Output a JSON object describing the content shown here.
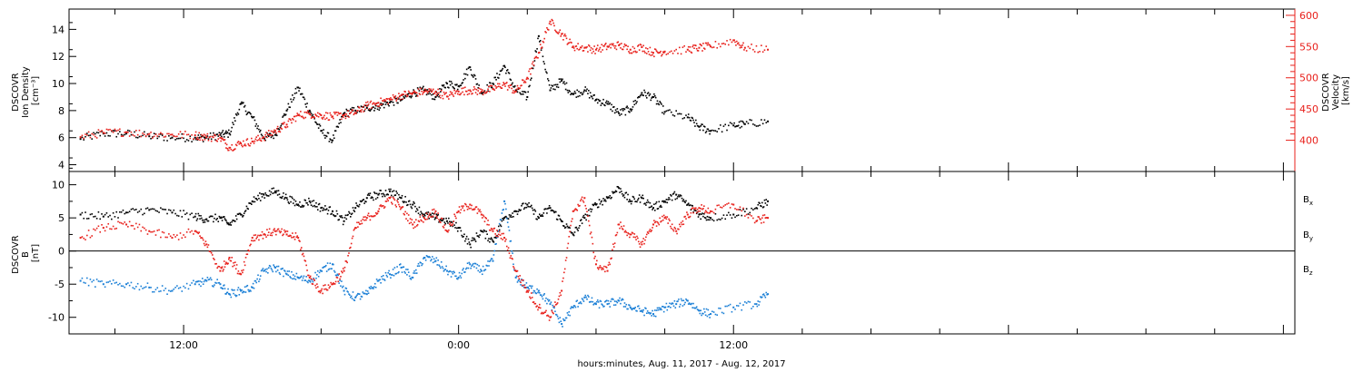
{
  "colors": {
    "black": "#000000",
    "red": "#e8201b",
    "blue": "#1a7fd6"
  },
  "chart_data": [
    {
      "type": "scatter",
      "panel": "top",
      "ylabel_left": [
        "DSCOVR",
        "Ion Density",
        "[cm⁻³]"
      ],
      "ylabel_right": [
        "DSCOVR",
        "Velocity",
        "[km/s]"
      ],
      "ylim_left": [
        3.5,
        15.5
      ],
      "left_ticks": [
        4,
        6,
        8,
        10,
        12,
        14
      ],
      "ylim_right": [
        350,
        610
      ],
      "right_ticks": [
        400,
        450,
        500,
        550,
        600
      ],
      "series": [
        {
          "name": "Ion Density",
          "color": "black",
          "axis": "left",
          "x": [
            7.5,
            8.5,
            9.5,
            10.5,
            11.5,
            12.5,
            13.0,
            13.6,
            14.0,
            14.5,
            15.0,
            15.5,
            16.0,
            16.5,
            17.0,
            17.5,
            18.0,
            18.5,
            19.0,
            19.5,
            20.0,
            20.5,
            21.0,
            21.5,
            22.0,
            22.5,
            23.0,
            23.5,
            24.0,
            24.5,
            25.0,
            25.5,
            26.0,
            26.5,
            27.0,
            27.5,
            28.0,
            28.5,
            29.0,
            29.5,
            30.0,
            30.5,
            31.0,
            31.5,
            32.0,
            32.5,
            33.0,
            34.0,
            34.5,
            35.0,
            36.0,
            36.5,
            37.5
          ],
          "y": [
            5.9,
            6.3,
            6.3,
            6.1,
            6.0,
            6.0,
            6.0,
            6.2,
            6.3,
            8.5,
            7.5,
            6.0,
            6.2,
            8.0,
            9.7,
            8.0,
            6.5,
            5.8,
            7.8,
            8.0,
            8.2,
            8.3,
            8.6,
            8.8,
            9.3,
            9.5,
            9.0,
            10.0,
            9.8,
            11.2,
            9.3,
            10.0,
            11.3,
            9.5,
            9.0,
            13.5,
            9.5,
            10.2,
            9.2,
            9.5,
            8.8,
            8.5,
            7.8,
            8.1,
            9.3,
            9.0,
            7.9,
            7.5,
            6.8,
            6.5,
            6.9,
            7.0,
            7.2
          ]
        },
        {
          "name": "Velocity",
          "color": "red",
          "axis": "right",
          "x": [
            7.5,
            8.5,
            9.5,
            10.5,
            11.5,
            12.5,
            13.0,
            13.6,
            14.0,
            14.5,
            15.0,
            15.5,
            16.0,
            16.5,
            17.0,
            17.5,
            18.0,
            18.5,
            19.0,
            19.5,
            20.0,
            20.5,
            21.0,
            21.5,
            22.0,
            22.5,
            23.0,
            23.5,
            24.0,
            24.5,
            25.0,
            25.5,
            26.0,
            26.5,
            27.0,
            27.5,
            28.0,
            28.5,
            29.0,
            29.5,
            30.0,
            30.5,
            31.0,
            31.5,
            32.0,
            32.5,
            33.0,
            34.0,
            34.5,
            35.0,
            36.0,
            36.5,
            37.5
          ],
          "y": [
            405,
            412,
            413,
            410,
            409,
            408,
            405,
            404,
            388,
            395,
            398,
            405,
            415,
            425,
            440,
            442,
            440,
            438,
            440,
            444,
            455,
            460,
            465,
            472,
            475,
            478,
            478,
            470,
            478,
            480,
            478,
            482,
            490,
            478,
            500,
            540,
            590,
            570,
            550,
            548,
            545,
            550,
            552,
            545,
            549,
            540,
            542,
            545,
            548,
            550,
            560,
            548,
            545
          ]
        }
      ]
    },
    {
      "type": "scatter",
      "panel": "bottom",
      "ylabel_left": [
        "DSCOVR",
        "B",
        "[nT]"
      ],
      "ylim": [
        -12.5,
        12
      ],
      "ticks": [
        -10,
        -5,
        0,
        5,
        10
      ],
      "legend_position": "right",
      "legend": [
        {
          "name": "B",
          "sub": "x",
          "color": "black"
        },
        {
          "name": "B",
          "sub": "y",
          "color": "blue"
        },
        {
          "name": "B",
          "sub": "z",
          "color": "red"
        }
      ],
      "series": [
        {
          "name": "Bx",
          "color": "black",
          "x": [
            7.5,
            8.5,
            9.5,
            10.5,
            11.5,
            12.5,
            13.0,
            13.6,
            14.0,
            14.5,
            15.0,
            15.5,
            16.0,
            16.5,
            17.0,
            17.5,
            18.0,
            18.5,
            19.0,
            19.5,
            20.0,
            20.5,
            21.0,
            21.5,
            22.0,
            22.5,
            23.0,
            23.5,
            24.0,
            24.5,
            25.0,
            25.5,
            26.0,
            26.5,
            27.0,
            27.5,
            28.0,
            28.5,
            29.0,
            29.5,
            30.0,
            30.5,
            31.0,
            31.5,
            32.0,
            32.5,
            33.0,
            33.5,
            34.0,
            34.5,
            35.0,
            36.0,
            37.0,
            37.5
          ],
          "y": [
            5.5,
            5.2,
            5.8,
            6.2,
            5.8,
            5.2,
            4.8,
            5.0,
            4.0,
            5.5,
            7.5,
            8.5,
            9.0,
            8.0,
            7.0,
            7.5,
            6.5,
            6.0,
            4.5,
            6.5,
            8.0,
            8.5,
            9.0,
            8.0,
            7.0,
            5.5,
            5.0,
            4.5,
            3.5,
            1.0,
            3.0,
            1.5,
            5.0,
            6.0,
            7.0,
            5.0,
            6.5,
            4.5,
            2.5,
            5.0,
            7.0,
            8.0,
            9.5,
            7.5,
            8.0,
            6.5,
            7.5,
            8.5,
            7.0,
            5.5,
            5.0,
            5.5,
            6.5,
            7.5
          ]
        },
        {
          "name": "By",
          "color": "blue",
          "x": [
            7.5,
            8.5,
            9.5,
            10.5,
            11.5,
            12.5,
            13.0,
            13.6,
            14.0,
            14.5,
            15.0,
            15.5,
            16.0,
            16.5,
            17.0,
            17.5,
            18.0,
            18.5,
            19.0,
            19.5,
            20.0,
            20.5,
            21.0,
            21.5,
            22.0,
            22.5,
            23.0,
            23.5,
            24.0,
            24.5,
            25.0,
            25.5,
            26.0,
            26.5,
            27.0,
            27.5,
            28.0,
            28.5,
            29.0,
            29.5,
            30.0,
            30.5,
            31.0,
            31.5,
            32.0,
            32.5,
            33.0,
            33.5,
            34.0,
            34.5,
            35.0,
            36.0,
            37.0,
            37.5
          ],
          "y": [
            -4.5,
            -5.0,
            -5.0,
            -5.5,
            -6.0,
            -5.0,
            -4.5,
            -5.0,
            -6.5,
            -6.0,
            -5.5,
            -3.0,
            -2.5,
            -3.5,
            -4.0,
            -4.5,
            -3.0,
            -2.0,
            -6.0,
            -7.0,
            -6.5,
            -4.5,
            -3.5,
            -2.5,
            -4.0,
            -1.0,
            -1.5,
            -3.0,
            -4.0,
            -2.0,
            -3.0,
            -1.5,
            7.5,
            -4.0,
            -5.5,
            -6.0,
            -8.0,
            -11.0,
            -8.5,
            -7.0,
            -8.0,
            -8.0,
            -7.5,
            -8.5,
            -9.0,
            -9.5,
            -8.5,
            -8.0,
            -7.5,
            -9.0,
            -9.5,
            -8.5,
            -8.0,
            -6.5
          ]
        },
        {
          "name": "Bz",
          "color": "red",
          "x": [
            7.5,
            8.5,
            9.5,
            10.5,
            11.5,
            12.5,
            13.0,
            13.6,
            14.0,
            14.5,
            15.0,
            15.5,
            16.0,
            16.5,
            17.0,
            17.5,
            18.0,
            18.5,
            19.0,
            19.5,
            20.0,
            20.5,
            21.0,
            21.5,
            22.0,
            22.5,
            23.0,
            23.5,
            24.0,
            24.5,
            25.0,
            25.5,
            26.0,
            26.5,
            27.0,
            27.5,
            28.0,
            28.5,
            29.0,
            29.5,
            30.0,
            30.5,
            31.0,
            31.5,
            32.0,
            32.5,
            33.0,
            33.5,
            34.0,
            34.5,
            35.0,
            36.0,
            37.0,
            37.5
          ],
          "y": [
            2.0,
            3.5,
            4.0,
            3.0,
            2.0,
            3.0,
            1.0,
            -3.0,
            -1.0,
            -3.5,
            2.0,
            2.5,
            3.0,
            2.5,
            2.0,
            -4.0,
            -6.0,
            -5.0,
            -3.0,
            3.5,
            5.0,
            6.0,
            8.0,
            6.5,
            4.0,
            5.0,
            6.0,
            3.0,
            6.0,
            7.0,
            5.5,
            3.0,
            2.0,
            -3.0,
            -6.0,
            -8.5,
            -10.0,
            -6.0,
            6.0,
            8.0,
            -2.0,
            -3.0,
            4.0,
            2.5,
            1.0,
            4.0,
            5.0,
            3.0,
            5.5,
            6.5,
            6.0,
            7.0,
            4.5,
            5.0
          ]
        }
      ]
    }
  ],
  "x_axis": {
    "label": "hours:minutes, Aug. 11, 2017 - Aug. 12, 2017",
    "start_hour": 7.0,
    "end_hour": 60.5,
    "tick_labels": [
      {
        "hour": 12,
        "label": "12:00"
      },
      {
        "hour": 24,
        "label": "0:00"
      },
      {
        "hour": 36,
        "label": "12:00"
      }
    ]
  }
}
